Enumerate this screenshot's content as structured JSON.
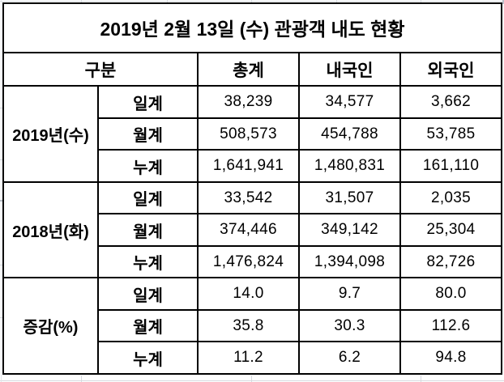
{
  "title": "2019년 2월 13일 (수) 관광객 내도 현황",
  "table": {
    "headers": {
      "category": "구분",
      "total": "총계",
      "domestic": "내국인",
      "foreign": "외국인"
    },
    "groups": [
      {
        "label": "2019년(수)",
        "rows": [
          {
            "label": "일계",
            "total": "38,239",
            "domestic": "34,577",
            "foreign": "3,662"
          },
          {
            "label": "월계",
            "total": "508,573",
            "domestic": "454,788",
            "foreign": "53,785"
          },
          {
            "label": "누계",
            "total": "1,641,941",
            "domestic": "1,480,831",
            "foreign": "161,110"
          }
        ]
      },
      {
        "label": "2018년(화)",
        "rows": [
          {
            "label": "일계",
            "total": "33,542",
            "domestic": "31,507",
            "foreign": "2,035"
          },
          {
            "label": "월계",
            "total": "374,446",
            "domestic": "349,142",
            "foreign": "25,304"
          },
          {
            "label": "누계",
            "total": "1,476,824",
            "domestic": "1,394,098",
            "foreign": "82,726"
          }
        ]
      },
      {
        "label": "증감(%)",
        "rows": [
          {
            "label": "일계",
            "total": "14.0",
            "domestic": "9.7",
            "foreign": "80.0"
          },
          {
            "label": "월계",
            "total": "35.8",
            "domestic": "30.3",
            "foreign": "112.6"
          },
          {
            "label": "누계",
            "total": "11.2",
            "domestic": "6.2",
            "foreign": "94.8"
          }
        ]
      }
    ]
  },
  "colors": {
    "table_border": "#000000",
    "background": "#ffffff",
    "text": "#000000",
    "gridline": "#d6dadf"
  }
}
